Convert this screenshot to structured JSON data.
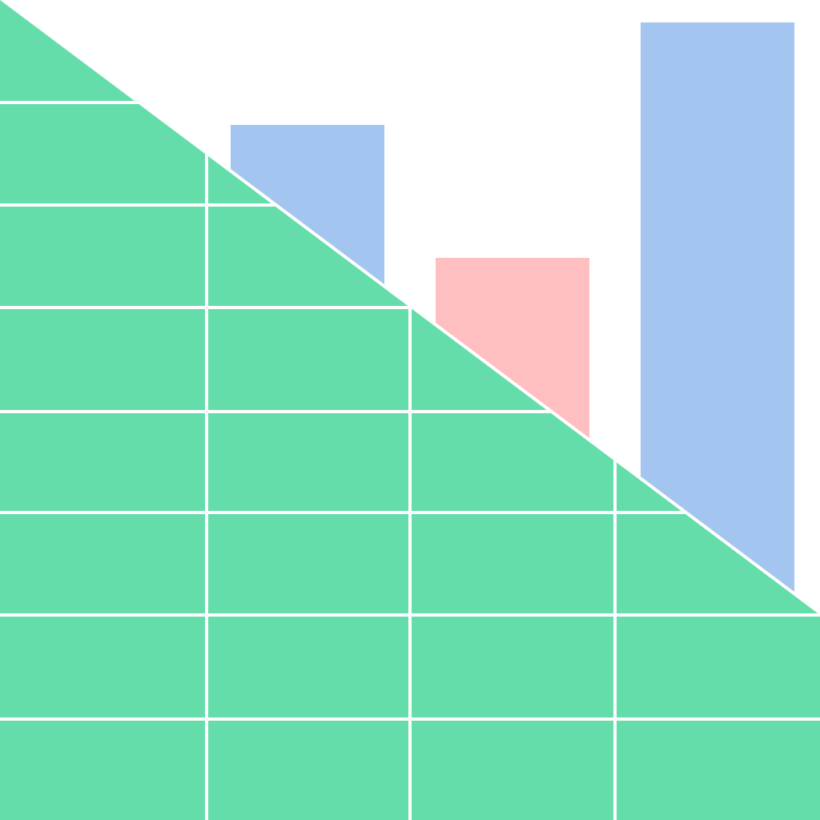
{
  "illustration": {
    "icon": "spreadsheet-chart-icon",
    "colors": {
      "sheet": "#64DDAB",
      "bar_primary": "#A3C5EF",
      "bar_accent": "#FFBFC1",
      "background": "#FFFFFF",
      "grid": "#FFFFFF"
    }
  }
}
